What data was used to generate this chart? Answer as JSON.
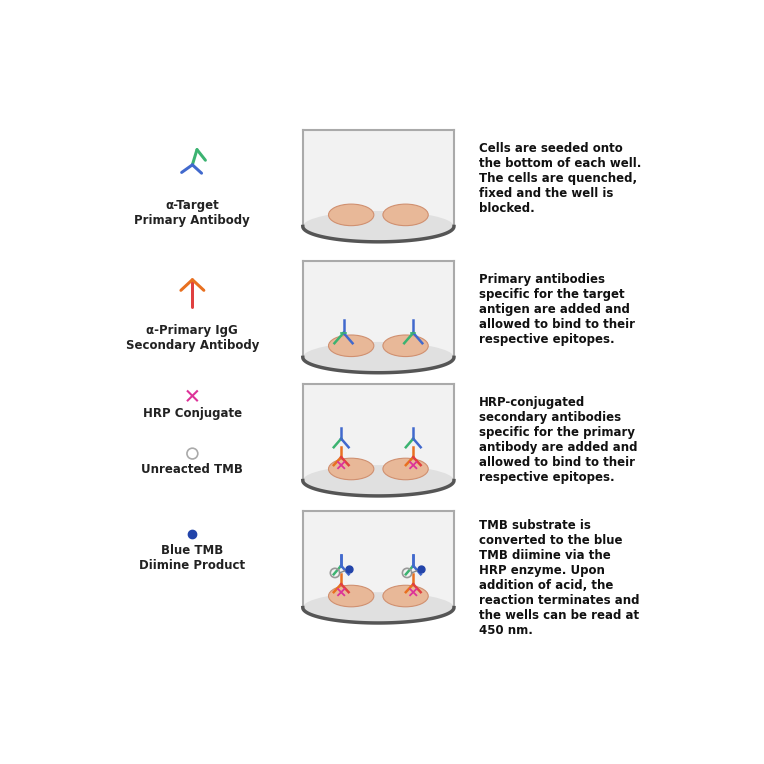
{
  "bg_color": "#ffffff",
  "rows": [
    {
      "icon_label": "α-Target\nPrimary Antibody",
      "icon_type": "antibody_primary",
      "well_content": "cells_only",
      "description": "Cells are seeded onto\nthe bottom of each well.\nThe cells are quenched,\nfixed and the well is\nblocked."
    },
    {
      "icon_label": "α-Primary IgG\nSecondary Antibody",
      "icon_type": "antibody_secondary",
      "well_content": "primary_antibodies",
      "description": "Primary antibodies\nspecific for the target\nantigen are added and\nallowed to bind to their\nrespective epitopes."
    },
    {
      "icon_label": "HRP Conjugate",
      "icon_type": "hrp_conjugate",
      "well_content": "secondary_antibodies",
      "description": "HRP-conjugated\nsecondary antibodies\nspecific for the primary\nantibody are added and\nallowed to bind to their\nrespective epitopes."
    },
    {
      "icon_label": "Blue TMB\nDiimine Product",
      "icon_type": "blue_tmb",
      "well_content": "tmb_reaction",
      "description": "TMB substrate is\nconverted to the blue\nTMB diimine via the\nHRP enzyme. Upon\naddition of acid, the\nreaction terminates and\nthe wells can be read at\n450 nm."
    }
  ],
  "unreacted_tmb_label": "Unreacted TMB",
  "cell_color": "#e8b898",
  "green": "#3cb371",
  "blue": "#4169cd",
  "orange": "#e87020",
  "red": "#e04040",
  "pink": "#dd3399",
  "navy": "#2244aa"
}
